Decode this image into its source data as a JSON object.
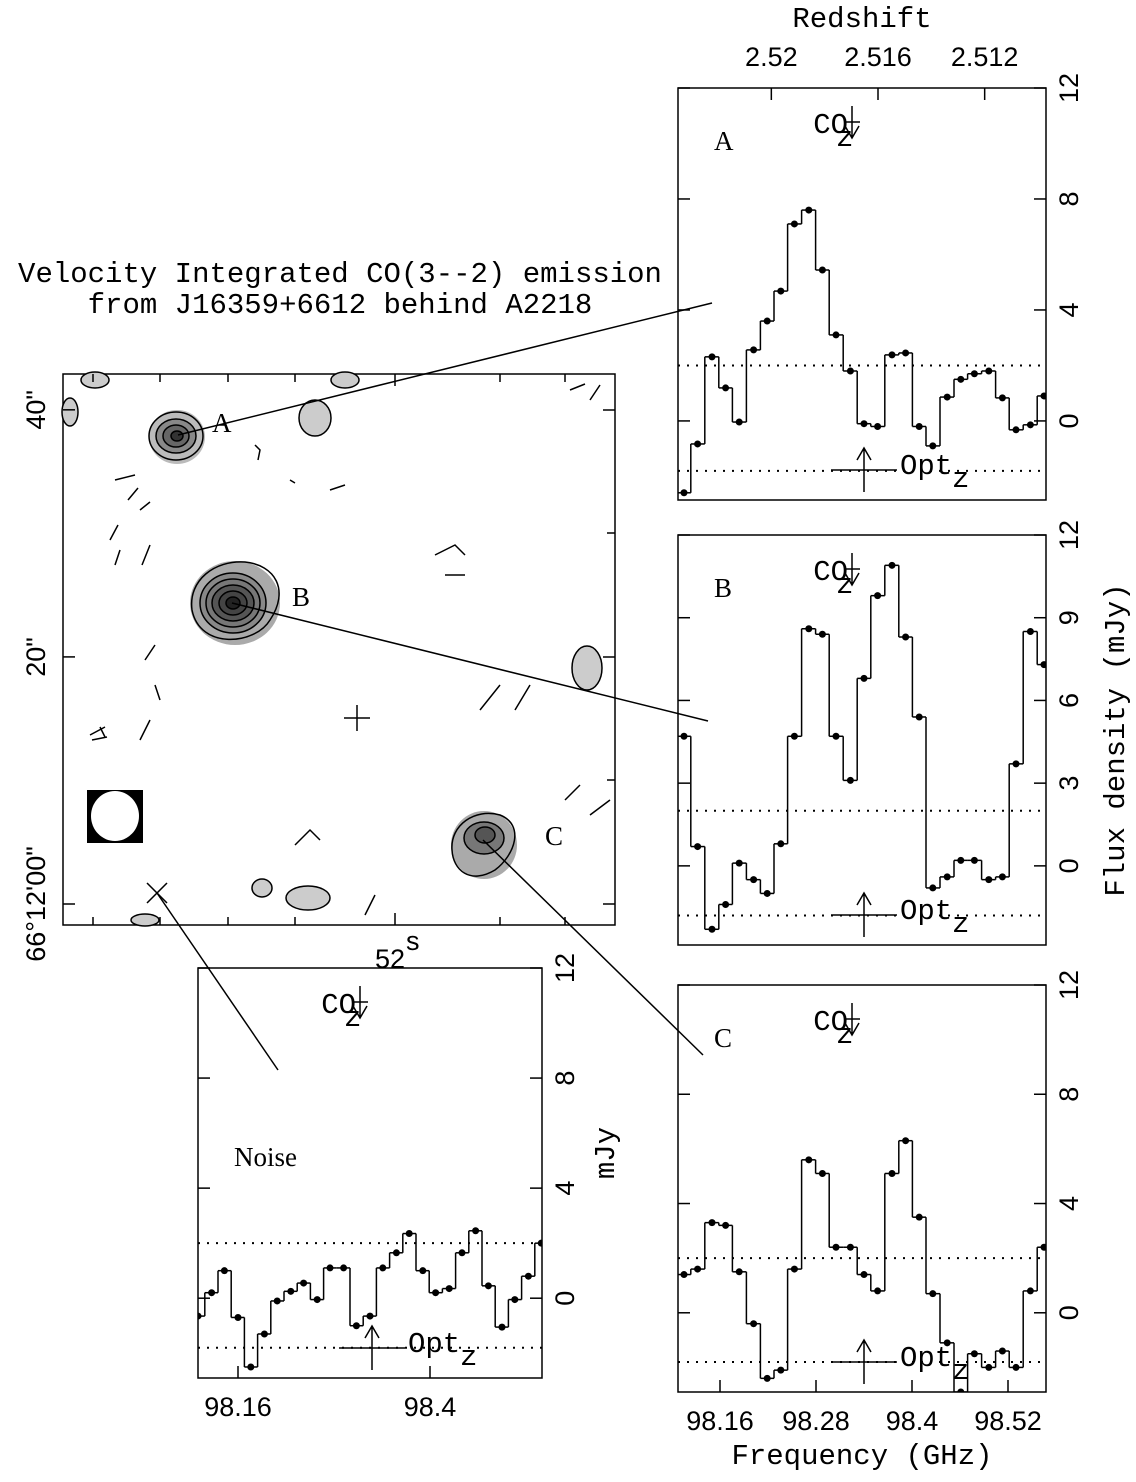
{
  "chart_data": [
    {
      "type": "contour",
      "title": [
        "Velocity Integrated CO(3--2) emission",
        "from J16359+6612 behind A2218"
      ],
      "ylim": [
        -1.7,
        42.9
      ],
      "yticks": [
        {
          "value": 40,
          "label": "40\""
        },
        {
          "value": 20,
          "label": "20\""
        },
        {
          "value": 0,
          "label": "66°12'00\""
        }
      ],
      "x_label": "52",
      "x_label_sup": "s",
      "sources": [
        "A",
        "B",
        "C"
      ]
    },
    {
      "type": "step",
      "panel_label": "A",
      "x": [
        98.115,
        98.132,
        98.15,
        98.167,
        98.184,
        98.202,
        98.219,
        98.236,
        98.253,
        98.271,
        98.288,
        98.305,
        98.323,
        98.34,
        98.357,
        98.375,
        98.392,
        98.409,
        98.426,
        98.444,
        98.461,
        98.478,
        98.496,
        98.513,
        98.53,
        98.548,
        98.565
      ],
      "values": [
        -2.59,
        -0.83,
        2.31,
        1.19,
        -0.04,
        2.56,
        3.6,
        4.68,
        7.1,
        7.6,
        5.44,
        3.1,
        1.8,
        -0.1,
        -0.2,
        2.38,
        2.45,
        -0.2,
        -0.9,
        0.86,
        1.5,
        1.7,
        1.8,
        0.83,
        -0.32,
        -0.14,
        0.9
      ],
      "xlim": [
        98.1075,
        98.5675
      ],
      "ylim": [
        -2.85,
        12
      ],
      "yticks": [
        0,
        4,
        8,
        12
      ],
      "x2label": "Redshift",
      "x2lim": [
        2.5235,
        2.5097
      ],
      "x2ticks": [
        2.52,
        2.516,
        2.512
      ],
      "levels": [
        2,
        -1.8
      ],
      "co_marker": {
        "label": "CO",
        "sub": "z",
        "x": 98.325
      },
      "opt_marker": {
        "label": "Opt",
        "sub": "z",
        "x": 98.34
      }
    },
    {
      "type": "step",
      "panel_label": "B",
      "x": [
        98.115,
        98.132,
        98.15,
        98.167,
        98.184,
        98.202,
        98.219,
        98.236,
        98.253,
        98.271,
        98.288,
        98.305,
        98.323,
        98.34,
        98.357,
        98.375,
        98.392,
        98.409,
        98.426,
        98.444,
        98.461,
        98.478,
        98.496,
        98.513,
        98.53,
        98.548,
        98.565
      ],
      "values": [
        4.7,
        0.7,
        -2.3,
        -1.4,
        0.1,
        -0.5,
        -1.0,
        0.8,
        4.7,
        8.6,
        8.4,
        4.7,
        3.1,
        6.8,
        9.8,
        10.9,
        8.3,
        5.4,
        -0.8,
        -0.4,
        0.2,
        0.2,
        -0.5,
        -0.4,
        3.7,
        8.5,
        7.3
      ],
      "xlim": [
        98.1075,
        98.5675
      ],
      "ylim": [
        -2.87,
        12
      ],
      "yticks": [
        0,
        3,
        6,
        9,
        12
      ],
      "ylabel": "Flux density (mJy)",
      "levels": [
        2,
        -1.8
      ],
      "co_marker": {
        "label": "CO",
        "sub": "z",
        "x": 98.325
      },
      "opt_marker": {
        "label": "Opt",
        "sub": "z",
        "x": 98.34
      }
    },
    {
      "type": "step",
      "panel_label": "C",
      "x": [
        98.115,
        98.132,
        98.15,
        98.167,
        98.184,
        98.202,
        98.219,
        98.236,
        98.253,
        98.271,
        98.288,
        98.305,
        98.323,
        98.34,
        98.357,
        98.375,
        98.392,
        98.409,
        98.426,
        98.444,
        98.461,
        98.478,
        98.496,
        98.513,
        98.53,
        98.548,
        98.565
      ],
      "values": [
        1.4,
        1.6,
        3.3,
        3.2,
        1.5,
        -0.4,
        -2.4,
        -2.1,
        1.6,
        5.6,
        5.1,
        2.4,
        2.4,
        1.4,
        0.8,
        5.1,
        6.3,
        3.5,
        0.7,
        -1.1,
        -2.9,
        -1.5,
        -2.0,
        -1.4,
        -2.0,
        0.8,
        2.4
      ],
      "xlim": [
        98.1075,
        98.5675
      ],
      "ylim": [
        -2.9,
        12
      ],
      "yticks": [
        0,
        4,
        8,
        12
      ],
      "xticks": [
        98.16,
        98.28,
        98.4,
        98.52
      ],
      "xlabel": "Frequency (GHz)",
      "levels": [
        2,
        -1.8
      ],
      "co_marker": {
        "label": "CO",
        "sub": "z",
        "x": 98.325
      },
      "opt_marker": {
        "label": "Opt",
        "sub": "z",
        "x": 98.34
      }
    },
    {
      "type": "step",
      "panel_label": "Noise",
      "x": [
        98.11,
        98.127,
        98.143,
        98.16,
        98.176,
        98.193,
        98.209,
        98.226,
        98.242,
        98.259,
        98.275,
        98.292,
        98.308,
        98.325,
        98.341,
        98.358,
        98.374,
        98.391,
        98.407,
        98.424,
        98.44,
        98.457,
        98.473,
        98.49,
        98.506,
        98.523,
        98.539
      ],
      "values": [
        -0.65,
        0.2,
        1.0,
        -0.7,
        -2.5,
        -1.3,
        -0.1,
        0.25,
        0.55,
        -0.05,
        1.1,
        1.1,
        -1.0,
        -0.65,
        1.1,
        1.65,
        2.35,
        1.0,
        0.2,
        0.35,
        1.65,
        2.45,
        0.45,
        -1.05,
        -0.05,
        0.8,
        2.0
      ],
      "xlim": [
        98.11,
        98.54
      ],
      "ylim": [
        -2.9,
        12
      ],
      "yticks": [
        0,
        4,
        8,
        12
      ],
      "xticks": [
        98.16,
        98.4
      ],
      "ylabel": "mJy",
      "levels": [
        2,
        -1.8
      ],
      "co_marker": {
        "label": "CO",
        "sub": "z",
        "x": 98.3125
      },
      "opt_marker": {
        "label": "Opt",
        "sub": "z",
        "x": 98.3275
      }
    }
  ]
}
